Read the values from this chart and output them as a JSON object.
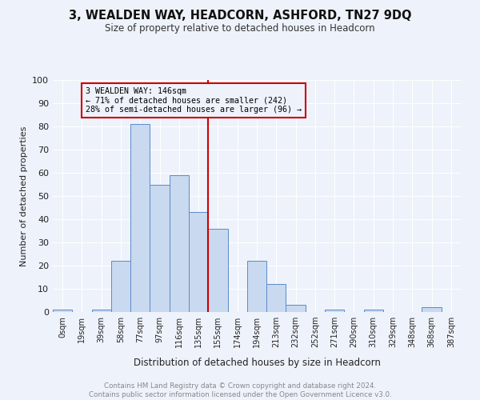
{
  "title": "3, WEALDEN WAY, HEADCORN, ASHFORD, TN27 9DQ",
  "subtitle": "Size of property relative to detached houses in Headcorn",
  "xlabel": "Distribution of detached houses by size in Headcorn",
  "ylabel": "Number of detached properties",
  "footer_line1": "Contains HM Land Registry data © Crown copyright and database right 2024.",
  "footer_line2": "Contains public sector information licensed under the Open Government Licence v3.0.",
  "bin_labels": [
    "0sqm",
    "19sqm",
    "39sqm",
    "58sqm",
    "77sqm",
    "97sqm",
    "116sqm",
    "135sqm",
    "155sqm",
    "174sqm",
    "194sqm",
    "213sqm",
    "232sqm",
    "252sqm",
    "271sqm",
    "290sqm",
    "310sqm",
    "329sqm",
    "348sqm",
    "368sqm",
    "387sqm"
  ],
  "bar_heights": [
    1,
    0,
    1,
    22,
    81,
    55,
    59,
    43,
    36,
    0,
    22,
    12,
    3,
    0,
    1,
    0,
    1,
    0,
    0,
    2,
    0
  ],
  "bar_color": "#c9d9ef",
  "bar_edge_color": "#5b8bc9",
  "vline_x": 7.5,
  "vline_color": "#cc0000",
  "annotation_title": "3 WEALDEN WAY: 146sqm",
  "annotation_line1": "← 71% of detached houses are smaller (242)",
  "annotation_line2": "28% of semi-detached houses are larger (96) →",
  "annotation_box_color": "#cc0000",
  "ylim": [
    0,
    100
  ],
  "yticks": [
    0,
    10,
    20,
    30,
    40,
    50,
    60,
    70,
    80,
    90,
    100
  ],
  "background_color": "#eef2fb",
  "grid_color": "#ffffff"
}
